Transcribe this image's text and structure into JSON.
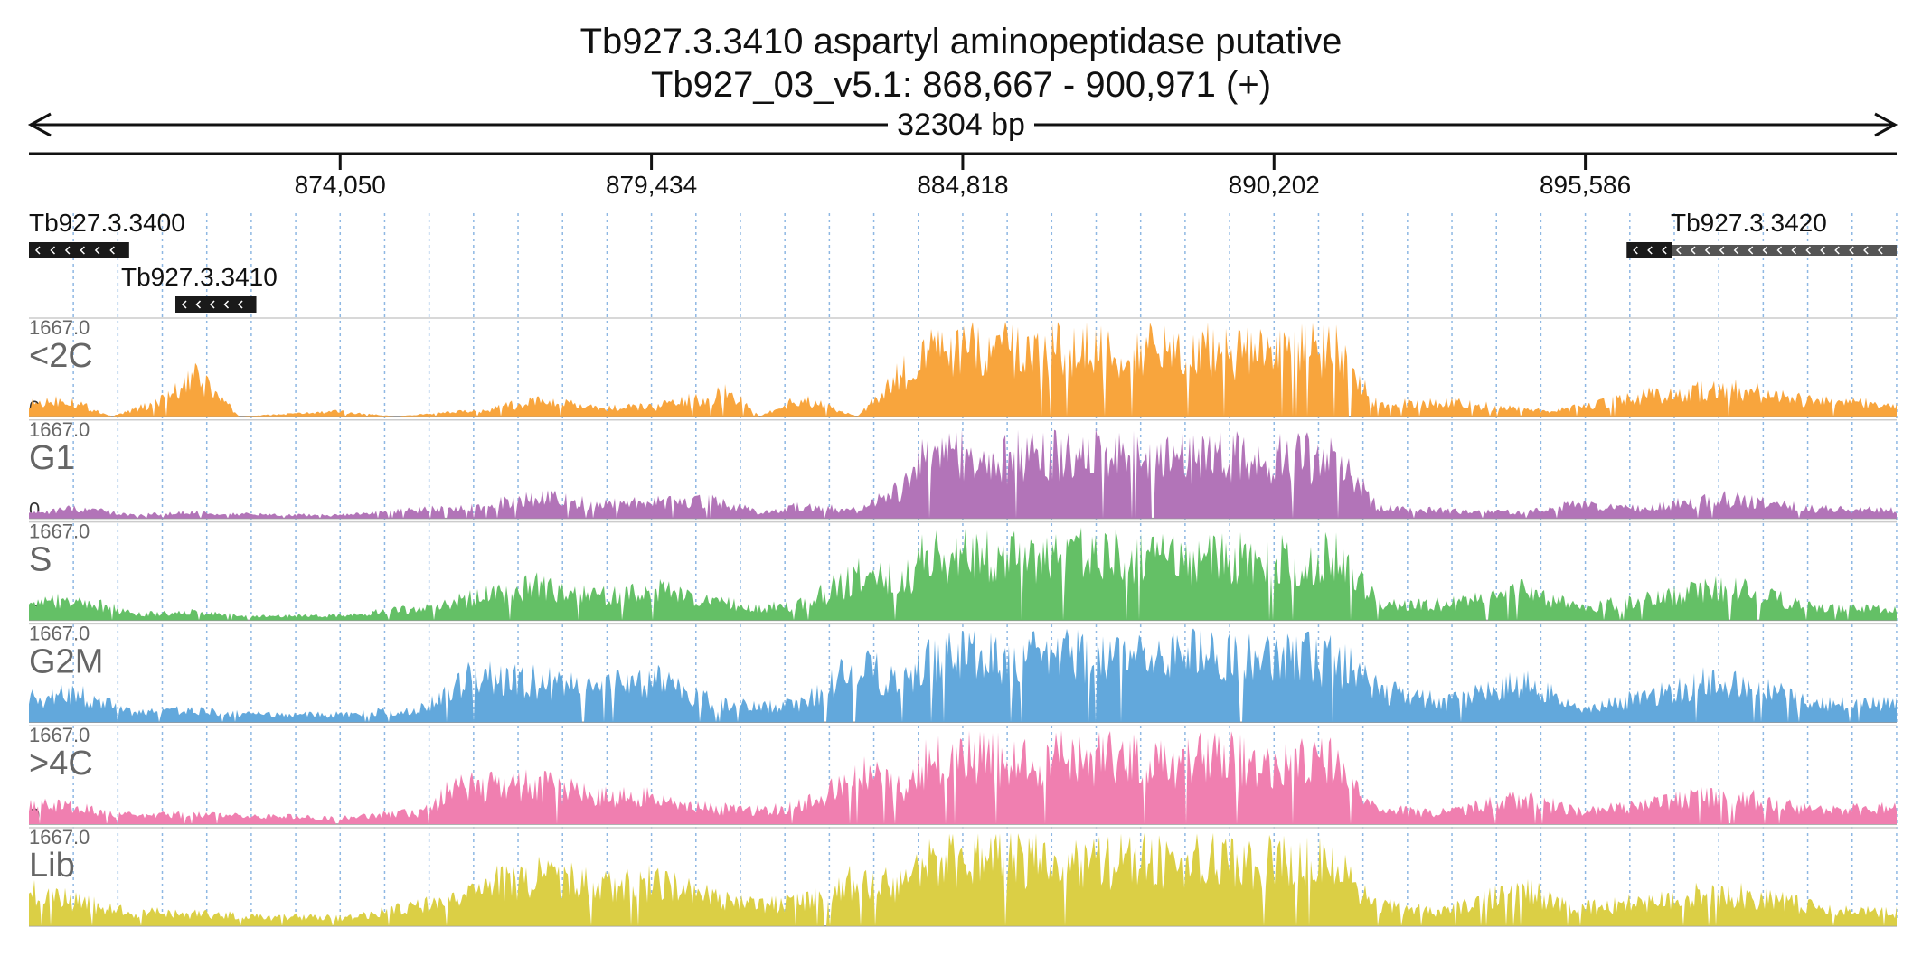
{
  "header": {
    "title": "Tb927.3.3410  aspartyl aminopeptidase  putative",
    "locus": "Tb927_03_v5.1: 868,667 - 900,971 (+)",
    "span_label": "32304 bp"
  },
  "chart_data": {
    "type": "area",
    "chromosome": "Tb927_03_v5.1",
    "xlim": [
      868667,
      900971
    ],
    "x_ticks": [
      874050,
      879434,
      884818,
      890202,
      895586
    ],
    "x_tick_labels": [
      "874,050",
      "879,434",
      "884,818",
      "890,202",
      "895,586"
    ],
    "genes": [
      {
        "name": "Tb927.3.3400",
        "start": 868667,
        "end": 870400,
        "strand": "-"
      },
      {
        "name": "Tb927.3.3410",
        "start": 871200,
        "end": 872600,
        "strand": "-"
      },
      {
        "name": "Tb927.3.3420",
        "start": 896300,
        "end": 900971,
        "strand": "-"
      }
    ],
    "ylim": [
      0,
      1667.0
    ],
    "y_max_label": "1667.0",
    "y_min_label": "0",
    "series": [
      {
        "name": "<2C",
        "color": "#f8a53d",
        "x": [
          868667,
          869300,
          870100,
          871000,
          871600,
          872300,
          874000,
          875000,
          876500,
          877500,
          878500,
          879500,
          880800,
          881300,
          882000,
          883000,
          884200,
          885500,
          887000,
          888500,
          889500,
          890500,
          891300,
          892000,
          893200,
          895000,
          896500,
          898000,
          899500,
          900971
        ],
        "values": [
          300,
          450,
          0,
          400,
          1000,
          0,
          120,
          0,
          150,
          400,
          200,
          250,
          600,
          0,
          450,
          0,
          1667,
          1667,
          1667,
          1667,
          1667,
          1667,
          1667,
          300,
          350,
          120,
          500,
          700,
          400,
          300
        ]
      },
      {
        "name": "G1",
        "color": "#b274b8",
        "x": [
          868667,
          869500,
          870500,
          871500,
          872500,
          874000,
          875500,
          876500,
          877500,
          878500,
          879500,
          880500,
          881300,
          882000,
          883000,
          883800,
          884200,
          885500,
          887000,
          888500,
          889500,
          890500,
          891300,
          892000,
          893200,
          894500,
          895500,
          896500,
          898000,
          899500,
          900971
        ],
        "values": [
          120,
          250,
          80,
          150,
          100,
          80,
          220,
          300,
          550,
          350,
          400,
          450,
          150,
          300,
          200,
          800,
          1667,
          1550,
          1600,
          1550,
          1600,
          1500,
          1550,
          250,
          200,
          150,
          350,
          250,
          500,
          250,
          200
        ]
      },
      {
        "name": "S",
        "color": "#64c066",
        "x": [
          868667,
          869500,
          870500,
          871500,
          872500,
          874000,
          875500,
          876500,
          877500,
          878500,
          879500,
          880500,
          881300,
          882000,
          883000,
          883800,
          884200,
          885500,
          887000,
          888500,
          889500,
          890500,
          891300,
          892000,
          893200,
          894500,
          895500,
          896500,
          898000,
          899500,
          900971
        ],
        "values": [
          400,
          550,
          150,
          200,
          100,
          120,
          300,
          600,
          900,
          600,
          750,
          500,
          300,
          400,
          1100,
          1000,
          1667,
          1600,
          1667,
          1600,
          1650,
          1550,
          1600,
          450,
          400,
          750,
          300,
          500,
          850,
          350,
          250
        ]
      },
      {
        "name": "G2M",
        "color": "#62a8dc",
        "x": [
          868667,
          869500,
          870500,
          871500,
          872500,
          874000,
          875500,
          876500,
          877500,
          878500,
          879500,
          880500,
          881300,
          882000,
          883000,
          883800,
          884200,
          885500,
          887000,
          888500,
          889500,
          890500,
          891300,
          892000,
          893200,
          894500,
          895500,
          896500,
          898000,
          899500,
          900971
        ],
        "values": [
          600,
          700,
          250,
          300,
          200,
          200,
          350,
          1300,
          1000,
          900,
          1050,
          500,
          400,
          450,
          1400,
          1000,
          1667,
          1600,
          1667,
          1650,
          1650,
          1600,
          1600,
          800,
          500,
          1000,
          350,
          600,
          1100,
          500,
          450
        ]
      },
      {
        "name": ">4C",
        "color": "#f07fb0",
        "x": [
          868667,
          869500,
          870500,
          871500,
          872500,
          874000,
          875500,
          876000,
          877500,
          878500,
          879500,
          880500,
          881300,
          882000,
          883000,
          883800,
          884200,
          885500,
          887000,
          888500,
          889500,
          890500,
          891300,
          892000,
          893200,
          894500,
          895500,
          896500,
          898000,
          899500,
          900971
        ],
        "values": [
          500,
          400,
          200,
          250,
          200,
          150,
          300,
          900,
          1000,
          700,
          650,
          400,
          350,
          450,
          1300,
          900,
          1667,
          1650,
          1667,
          1600,
          1650,
          1500,
          1550,
          350,
          300,
          650,
          300,
          450,
          750,
          350,
          400
        ]
      },
      {
        "name": "Lib",
        "color": "#dbcf45",
        "x": [
          868667,
          869500,
          870500,
          871500,
          872500,
          874000,
          875500,
          876500,
          877500,
          878500,
          879500,
          880500,
          881300,
          882000,
          883000,
          883800,
          884200,
          885500,
          887000,
          888500,
          889500,
          890500,
          891300,
          892000,
          893200,
          894500,
          895500,
          896500,
          898000,
          899500,
          900971
        ],
        "values": [
          900,
          600,
          350,
          300,
          250,
          200,
          500,
          1000,
          1300,
          1000,
          1100,
          700,
          500,
          600,
          1150,
          1000,
          1667,
          1650,
          1667,
          1650,
          1650,
          1600,
          1600,
          500,
          400,
          900,
          450,
          600,
          850,
          500,
          350
        ]
      }
    ]
  }
}
